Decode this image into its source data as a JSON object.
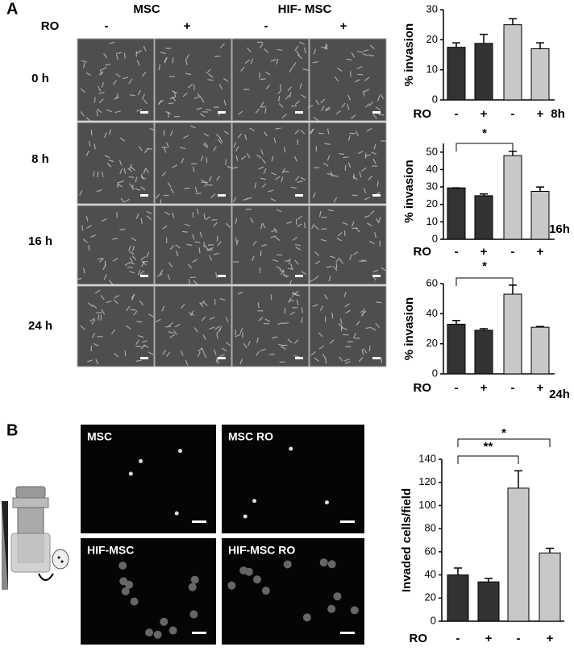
{
  "panel_a": {
    "label": "A",
    "groups": [
      "MSC",
      "HIF- MSC"
    ],
    "treatment": "RO",
    "signs": [
      "-",
      "+",
      "-",
      "+"
    ],
    "times": [
      "0 h",
      "8 h",
      "16 h",
      "24 h"
    ]
  },
  "panel_b": {
    "label": "B",
    "images": [
      "MSC",
      "MSC RO",
      "HIF-MSC",
      "HIF-MSC RO"
    ]
  },
  "chart_data": [
    {
      "type": "bar",
      "y_label": "% invasion",
      "x_label": "RO",
      "time": "8h",
      "categories": [
        "-",
        "+",
        "-",
        "+"
      ],
      "values": [
        17.5,
        18.8,
        25,
        17
      ],
      "errors": [
        1.5,
        3,
        2,
        2
      ],
      "colors": [
        "#333333",
        "#333333",
        "#c8c8c8",
        "#c8c8c8"
      ],
      "ylim": [
        0,
        30
      ],
      "yticks": [
        0,
        10,
        20,
        30
      ],
      "annotations": []
    },
    {
      "type": "bar",
      "y_label": "% invasion",
      "x_label": "RO",
      "time": "16h",
      "categories": [
        "-",
        "+",
        "-",
        "+"
      ],
      "values": [
        29.5,
        25,
        48,
        27.5
      ],
      "errors": [
        0,
        1,
        2.5,
        2.5
      ],
      "colors": [
        "#333333",
        "#333333",
        "#c8c8c8",
        "#c8c8c8"
      ],
      "ylim": [
        0,
        55
      ],
      "yticks": [
        0,
        10,
        20,
        30,
        40,
        50
      ],
      "annotations": [
        "*"
      ]
    },
    {
      "type": "bar",
      "y_label": "% invasion",
      "x_label": "RO",
      "time": "24h",
      "categories": [
        "-",
        "+",
        "-",
        "+"
      ],
      "values": [
        33,
        29,
        53,
        31
      ],
      "errors": [
        2.5,
        1,
        6,
        0.5
      ],
      "colors": [
        "#333333",
        "#333333",
        "#c8c8c8",
        "#c8c8c8"
      ],
      "ylim": [
        0,
        60
      ],
      "yticks": [
        0,
        20,
        40,
        60
      ],
      "annotations": [
        "*"
      ]
    },
    {
      "type": "bar",
      "y_label": "Invaded cells/field",
      "x_label": "RO",
      "categories": [
        "-",
        "+",
        "-",
        "+"
      ],
      "values": [
        40,
        34,
        115,
        59
      ],
      "errors": [
        6,
        3,
        15,
        4
      ],
      "colors": [
        "#333333",
        "#333333",
        "#c8c8c8",
        "#c8c8c8"
      ],
      "ylim": [
        0,
        140
      ],
      "yticks": [
        0,
        20,
        40,
        60,
        80,
        100,
        120,
        140
      ],
      "annotations": [
        "**",
        "*"
      ]
    }
  ]
}
